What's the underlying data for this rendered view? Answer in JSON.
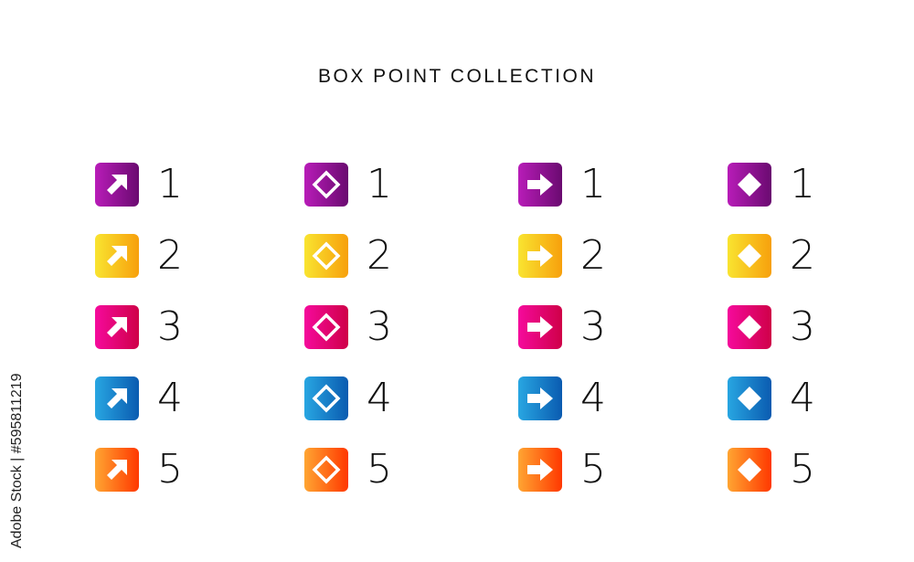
{
  "title": "BOX POINT COLLECTION",
  "watermark": "Adobe Stock | #595811219",
  "colors": [
    {
      "from": "#b81cb8",
      "to": "#6a0a70"
    },
    {
      "from": "#f9e430",
      "to": "#f7a00c"
    },
    {
      "from": "#f50a9c",
      "to": "#cf0048"
    },
    {
      "from": "#28a6e2",
      "to": "#0a5bb0"
    },
    {
      "from": "#ffa532",
      "to": "#ff3800"
    }
  ],
  "columns": [
    {
      "icon": "arrow-up-right",
      "items": [
        "1",
        "2",
        "3",
        "4",
        "5"
      ]
    },
    {
      "icon": "diamond-outline",
      "items": [
        "1",
        "2",
        "3",
        "4",
        "5"
      ]
    },
    {
      "icon": "arrow-right",
      "items": [
        "1",
        "2",
        "3",
        "4",
        "5"
      ]
    },
    {
      "icon": "diamond-filled",
      "items": [
        "1",
        "2",
        "3",
        "4",
        "5"
      ]
    }
  ]
}
